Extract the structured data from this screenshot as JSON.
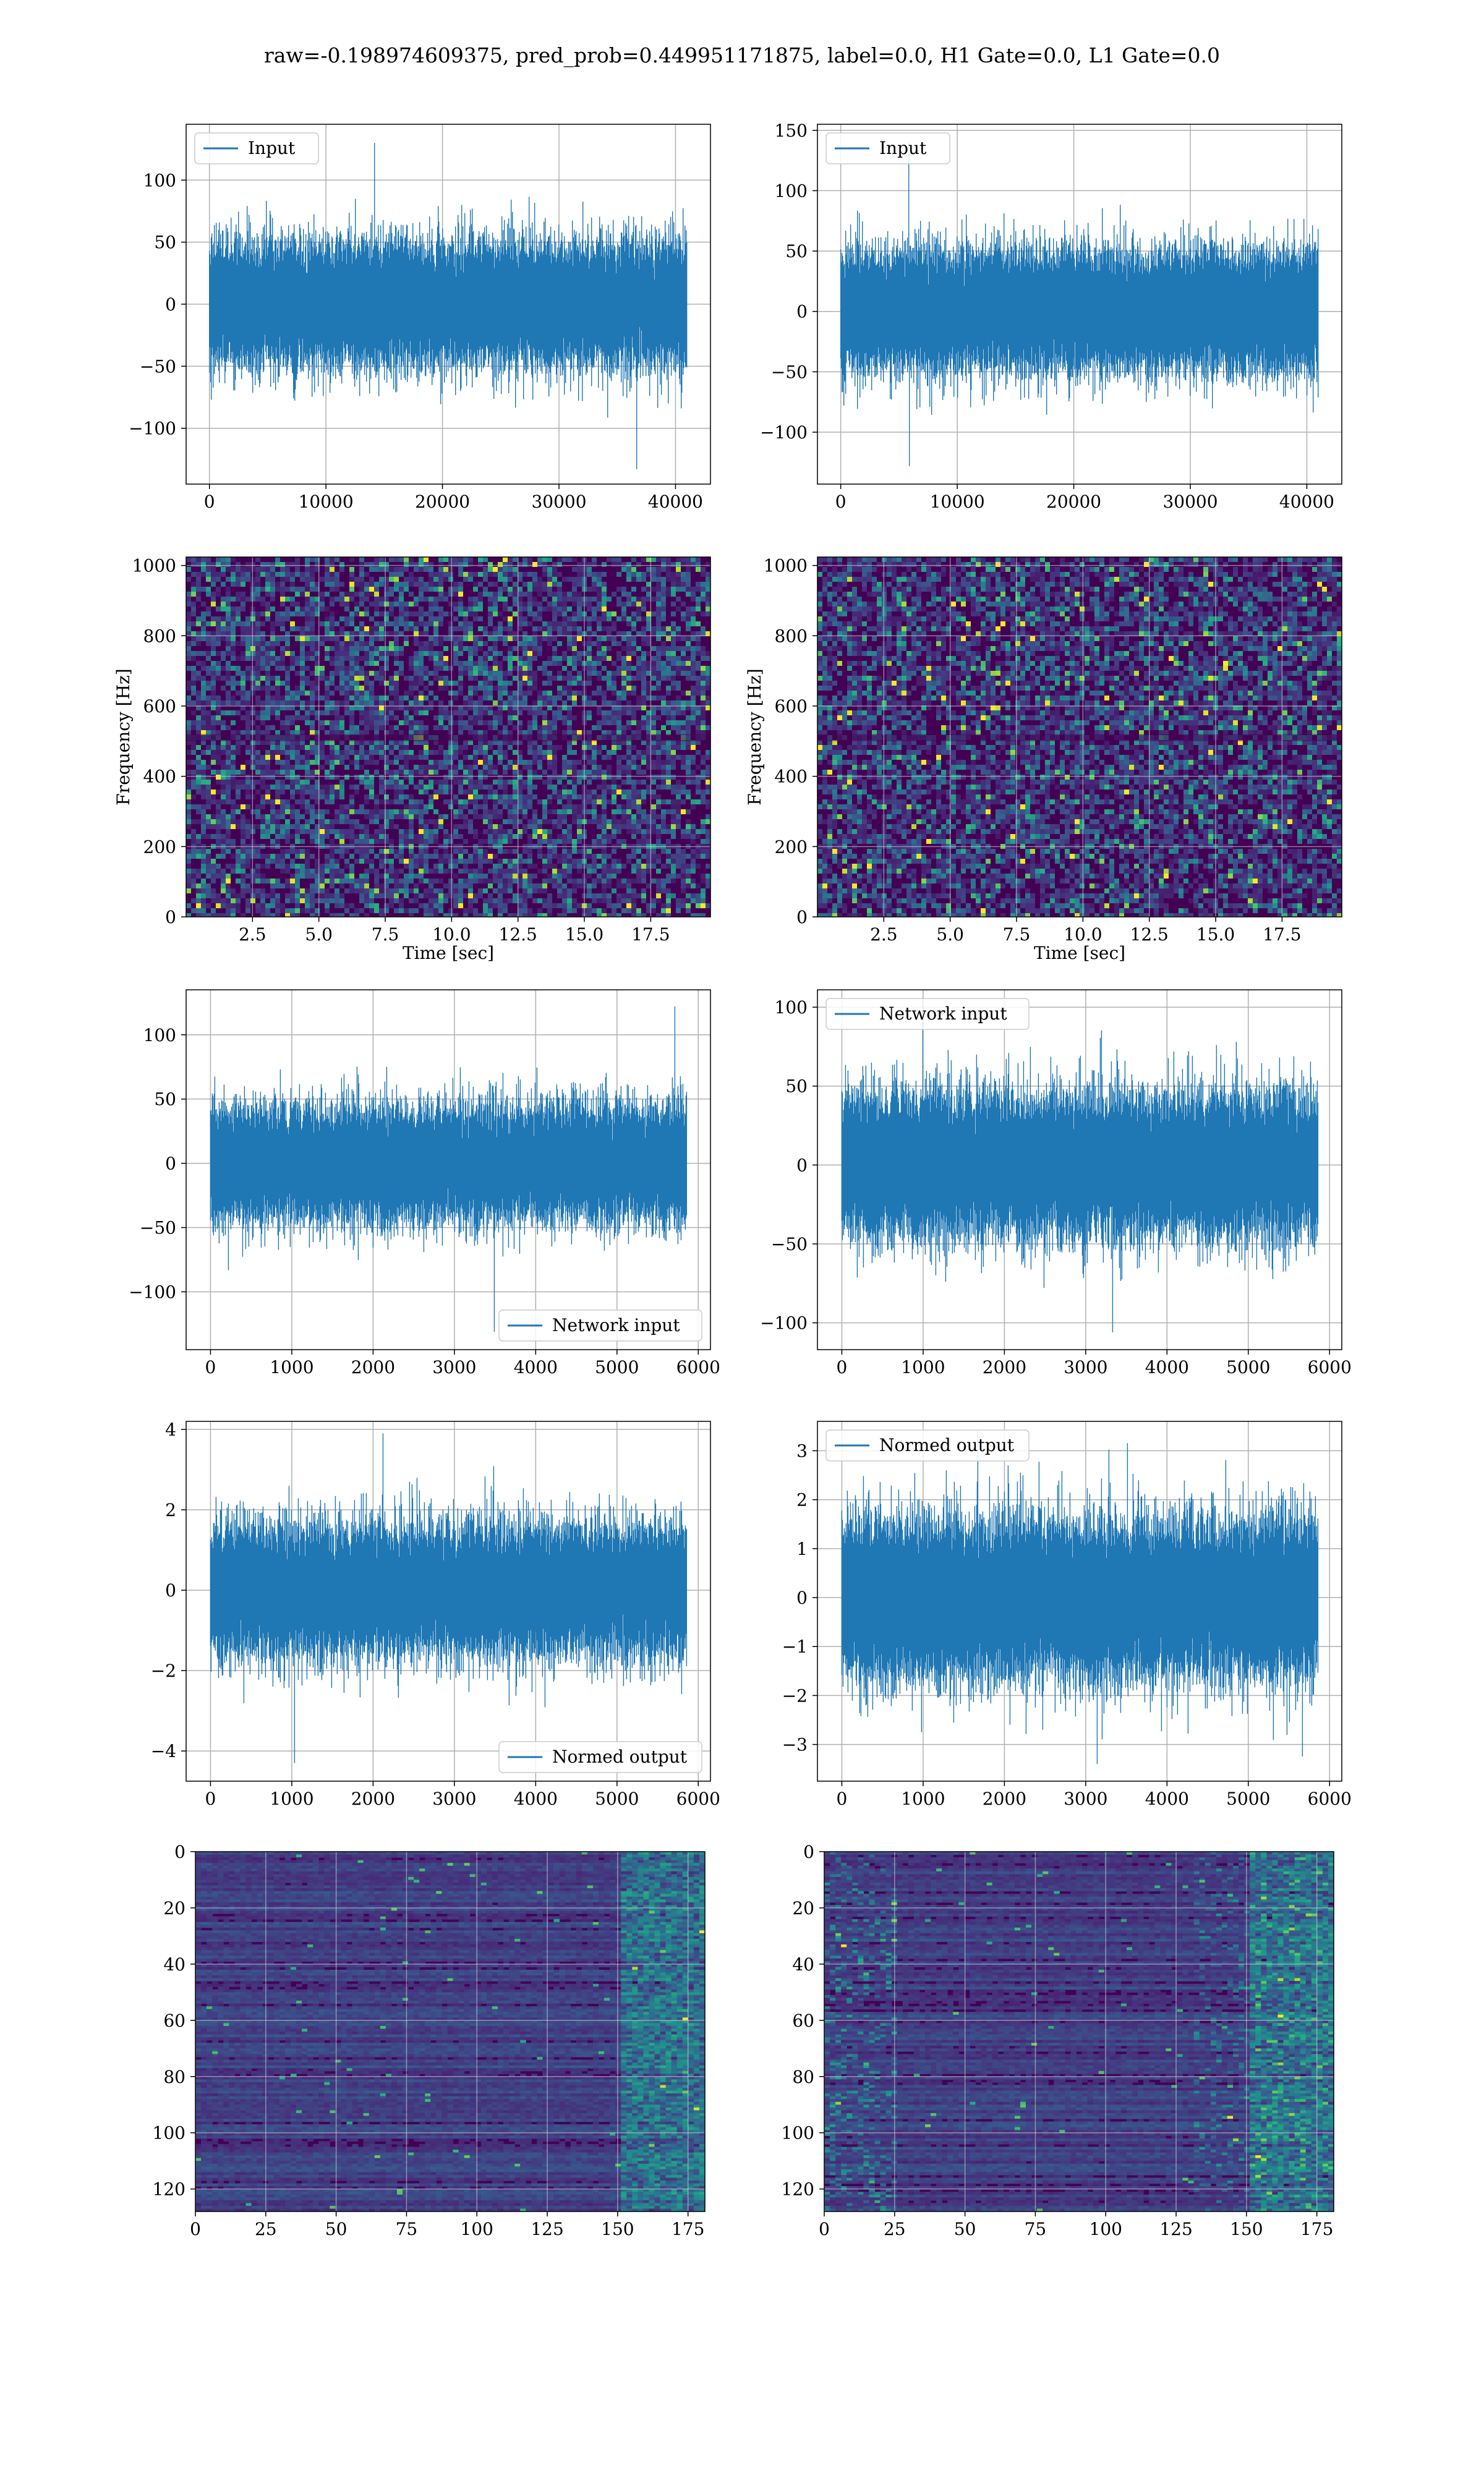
{
  "title": "raw=-0.198974609375, pred_prob=0.449951171875, label=0.0, H1 Gate=0.0, L1 Gate=0.0",
  "colors": {
    "series": "#1f77b4",
    "viridis": [
      "#440154",
      "#472c7a",
      "#3b528b",
      "#2c728e",
      "#21918c",
      "#28ae80",
      "#5ec962",
      "#addc30",
      "#fde725"
    ]
  },
  "chart_data": [
    {
      "id": "h1-input",
      "type": "line",
      "series": [
        {
          "name": "Input",
          "length": 40960,
          "amplitude": 22,
          "min": -133,
          "max": 130
        }
      ],
      "xticks": [
        0,
        10000,
        20000,
        30000,
        40000
      ],
      "yticks": [
        -100,
        -50,
        0,
        50,
        100
      ],
      "xlim": [
        -2000,
        43000
      ],
      "ylim": [
        -145,
        145
      ],
      "legend": "upper left",
      "grid": true,
      "xlabel": "",
      "ylabel": ""
    },
    {
      "id": "l1-input",
      "type": "line",
      "series": [
        {
          "name": "Input",
          "length": 40960,
          "amplitude": 22,
          "min": -128,
          "max": 140
        }
      ],
      "xticks": [
        0,
        10000,
        20000,
        30000,
        40000
      ],
      "yticks": [
        -100,
        -50,
        0,
        50,
        100,
        150
      ],
      "xlim": [
        -2000,
        43000
      ],
      "ylim": [
        -143,
        155
      ],
      "legend": "upper left",
      "grid": true,
      "xlabel": "",
      "ylabel": ""
    },
    {
      "id": "h1-spectrogram",
      "type": "heatmap",
      "xticks": [
        2.5,
        5.0,
        7.5,
        10.0,
        12.5,
        15.0,
        17.5
      ],
      "yticks": [
        0,
        200,
        400,
        600,
        800,
        1000
      ],
      "xlim": [
        0,
        19.75
      ],
      "ylim": [
        0,
        1024
      ],
      "xlabel": "Time [sec]",
      "ylabel": "Frequency [Hz]",
      "grid": true
    },
    {
      "id": "l1-spectrogram",
      "type": "heatmap",
      "xticks": [
        2.5,
        5.0,
        7.5,
        10.0,
        12.5,
        15.0,
        17.5
      ],
      "yticks": [
        0,
        200,
        400,
        600,
        800,
        1000
      ],
      "xlim": [
        0,
        19.75
      ],
      "ylim": [
        0,
        1024
      ],
      "xlabel": "Time [sec]",
      "ylabel": "Frequency [Hz]",
      "grid": true
    },
    {
      "id": "h1-network-input",
      "type": "line",
      "series": [
        {
          "name": "Network input",
          "length": 5860,
          "amplitude": 20,
          "min": -131,
          "max": 122
        }
      ],
      "xticks": [
        0,
        1000,
        2000,
        3000,
        4000,
        5000,
        6000
      ],
      "yticks": [
        -100,
        -50,
        0,
        50,
        100
      ],
      "xlim": [
        -300,
        6150
      ],
      "ylim": [
        -145,
        135
      ],
      "legend": "lower right",
      "grid": true,
      "xlabel": "",
      "ylabel": ""
    },
    {
      "id": "l1-network-input",
      "type": "line",
      "series": [
        {
          "name": "Network input",
          "length": 5860,
          "amplitude": 20,
          "min": -106,
          "max": 106
        }
      ],
      "xticks": [
        0,
        1000,
        2000,
        3000,
        4000,
        5000,
        6000
      ],
      "yticks": [
        -100,
        -50,
        0,
        50,
        100
      ],
      "xlim": [
        -300,
        6150
      ],
      "ylim": [
        -117,
        111
      ],
      "legend": "upper left",
      "grid": true,
      "xlabel": "",
      "ylabel": ""
    },
    {
      "id": "h1-normed-output",
      "type": "line",
      "series": [
        {
          "name": "Normed output",
          "length": 5860,
          "amplitude": 0.72,
          "min": -4.3,
          "max": 3.9
        }
      ],
      "xticks": [
        0,
        1000,
        2000,
        3000,
        4000,
        5000,
        6000
      ],
      "yticks": [
        -4,
        -2,
        0,
        2,
        4
      ],
      "xlim": [
        -300,
        6150
      ],
      "ylim": [
        -4.75,
        4.2
      ],
      "legend": "lower right",
      "grid": true,
      "xlabel": "",
      "ylabel": ""
    },
    {
      "id": "l1-normed-output",
      "type": "line",
      "series": [
        {
          "name": "Normed output",
          "length": 5860,
          "amplitude": 0.72,
          "min": -3.4,
          "max": 3.4
        }
      ],
      "xticks": [
        0,
        1000,
        2000,
        3000,
        4000,
        5000,
        6000
      ],
      "yticks": [
        -3,
        -2,
        -1,
        0,
        1,
        2,
        3
      ],
      "xlim": [
        -300,
        6150
      ],
      "ylim": [
        -3.75,
        3.6
      ],
      "legend": "upper left",
      "grid": true,
      "xlabel": "",
      "ylabel": ""
    },
    {
      "id": "h1-feature-map",
      "type": "heatmap",
      "xticks": [
        0,
        25,
        50,
        75,
        100,
        125,
        150,
        175
      ],
      "yticks": [
        0,
        20,
        40,
        60,
        80,
        100,
        120
      ],
      "xlim": [
        0,
        181
      ],
      "ylim": [
        128,
        0
      ],
      "grid": true,
      "xlabel": "",
      "ylabel": ""
    },
    {
      "id": "l1-feature-map",
      "type": "heatmap",
      "xticks": [
        0,
        25,
        50,
        75,
        100,
        125,
        150,
        175
      ],
      "yticks": [
        0,
        20,
        40,
        60,
        80,
        100,
        120
      ],
      "xlim": [
        0,
        181
      ],
      "ylim": [
        128,
        0
      ],
      "grid": true,
      "xlabel": "",
      "ylabel": ""
    }
  ]
}
